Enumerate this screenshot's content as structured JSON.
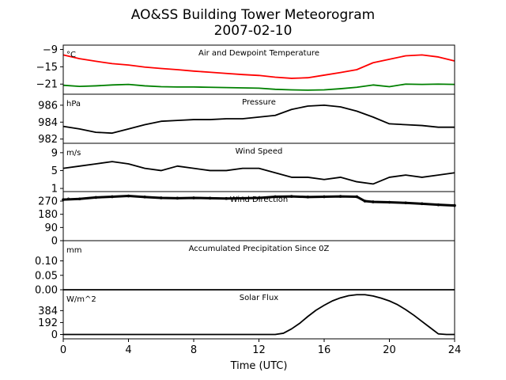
{
  "figure": {
    "title_line1": "AO&SS Building Tower Meteorogram",
    "title_line2": "2007-02-10",
    "xlabel": "Time (UTC)",
    "xticks": [
      "0",
      "4",
      "8",
      "12",
      "16",
      "20",
      "24"
    ]
  },
  "chart_data": [
    {
      "type": "line",
      "title": "Air and Dewpoint Temperature",
      "unit_label": "°C",
      "ylim": [
        -24.5,
        -7.5
      ],
      "yticks": [
        -9,
        -15,
        -21
      ],
      "ytick_labels": [
        "−9",
        "−15",
        "−21"
      ],
      "x": [
        0,
        1,
        2,
        3,
        4,
        5,
        6,
        7,
        8,
        9,
        10,
        11,
        12,
        13,
        14,
        15,
        16,
        17,
        18,
        19,
        20,
        21,
        22,
        23,
        24
      ],
      "series": [
        {
          "color": "#ff0000",
          "values": [
            -10.9,
            -12.2,
            -13.1,
            -13.9,
            -14.4,
            -15.1,
            -15.6,
            -16.0,
            -16.5,
            -16.9,
            -17.3,
            -17.7,
            -18.0,
            -18.6,
            -19.0,
            -18.8,
            -17.9,
            -17.0,
            -16.0,
            -13.6,
            -12.4,
            -11.2,
            -10.9,
            -11.6,
            -13.0
          ]
        },
        {
          "color": "#008000",
          "values": [
            -21.4,
            -21.8,
            -21.6,
            -21.3,
            -21.1,
            -21.6,
            -21.9,
            -22.0,
            -22.0,
            -22.1,
            -22.2,
            -22.3,
            -22.4,
            -22.8,
            -23.0,
            -23.1,
            -23.0,
            -22.6,
            -22.1,
            -21.3,
            -21.9,
            -21.0,
            -21.1,
            -21.0,
            -21.1
          ]
        }
      ]
    },
    {
      "type": "line",
      "title": "Pressure",
      "unit_label": "hPa",
      "ylim": [
        981.5,
        987.3
      ],
      "yticks": [
        986,
        984,
        982
      ],
      "ytick_labels": [
        "986",
        "984",
        "982"
      ],
      "x": [
        0,
        1,
        2,
        3,
        4,
        5,
        6,
        7,
        8,
        9,
        10,
        11,
        12,
        13,
        14,
        15,
        16,
        17,
        18,
        19,
        20,
        21,
        22,
        23,
        24
      ],
      "series": [
        {
          "color": "#000000",
          "values": [
            983.5,
            983.2,
            982.8,
            982.7,
            983.2,
            983.7,
            984.1,
            984.2,
            984.3,
            984.3,
            984.4,
            984.4,
            984.6,
            984.8,
            985.5,
            985.9,
            986.0,
            985.8,
            985.3,
            984.6,
            983.8,
            983.7,
            983.6,
            983.4,
            983.4
          ]
        }
      ]
    },
    {
      "type": "line",
      "title": "Wind Speed",
      "unit_label": "m/s",
      "ylim": [
        0.3,
        11.1
      ],
      "yticks": [
        9,
        5,
        1
      ],
      "ytick_labels": [
        "9",
        "5",
        "1"
      ],
      "x": [
        0,
        1,
        2,
        3,
        4,
        5,
        6,
        7,
        8,
        9,
        10,
        11,
        12,
        13,
        14,
        15,
        16,
        17,
        18,
        19,
        20,
        21,
        22,
        23,
        24
      ],
      "series": [
        {
          "color": "#000000",
          "values": [
            5.5,
            6.0,
            6.5,
            7.0,
            6.5,
            5.5,
            5.0,
            6.0,
            5.5,
            5.0,
            5.0,
            5.5,
            5.5,
            4.5,
            3.5,
            3.5,
            3.0,
            3.5,
            2.5,
            2.0,
            3.5,
            4.0,
            3.5,
            4.0,
            4.5
          ]
        }
      ]
    },
    {
      "type": "scatter",
      "title": "Wind Direction",
      "unit_label": "°",
      "ylim": [
        0,
        335
      ],
      "yticks": [
        270,
        180,
        90,
        0
      ],
      "ytick_labels": [
        "270",
        "180",
        "90",
        "0"
      ],
      "x": [
        0,
        1,
        2,
        3,
        4,
        5,
        6,
        7,
        8,
        9,
        10,
        11,
        12,
        13,
        14,
        15,
        16,
        17,
        18,
        18.5,
        19,
        20,
        21,
        22,
        23,
        24
      ],
      "series": [
        {
          "color": "#000000",
          "values": [
            280,
            285,
            295,
            300,
            305,
            298,
            292,
            290,
            292,
            290,
            288,
            290,
            292,
            300,
            302,
            298,
            300,
            302,
            300,
            270,
            265,
            262,
            258,
            252,
            245,
            240
          ]
        }
      ]
    },
    {
      "type": "line",
      "title": "Accumulated Precipitation Since 0Z",
      "unit_label": "mm",
      "ylim": [
        0,
        0.17
      ],
      "yticks": [
        0.1,
        0.05,
        0.0
      ],
      "ytick_labels": [
        "0.10",
        "0.05",
        "0.00"
      ],
      "x": [
        0,
        24
      ],
      "series": [
        {
          "color": "#000000",
          "values": [
            0,
            0
          ]
        }
      ]
    },
    {
      "type": "line",
      "title": "Solar Flux",
      "unit_label": "W/m^2",
      "ylim": [
        -70,
        720
      ],
      "yticks": [
        384,
        192,
        0
      ],
      "ytick_labels": [
        "384",
        "192",
        "0"
      ],
      "x": [
        0,
        13,
        13.5,
        14,
        14.5,
        15,
        15.5,
        16,
        16.5,
        17,
        17.5,
        18,
        18.5,
        19,
        19.5,
        20,
        20.5,
        21,
        21.5,
        22,
        22.5,
        23,
        23.5,
        24
      ],
      "series": [
        {
          "color": "#000000",
          "values": [
            0,
            0,
            20,
            90,
            180,
            290,
            390,
            470,
            540,
            590,
            625,
            640,
            640,
            620,
            585,
            540,
            480,
            400,
            310,
            210,
            110,
            10,
            0,
            0
          ]
        }
      ]
    }
  ]
}
